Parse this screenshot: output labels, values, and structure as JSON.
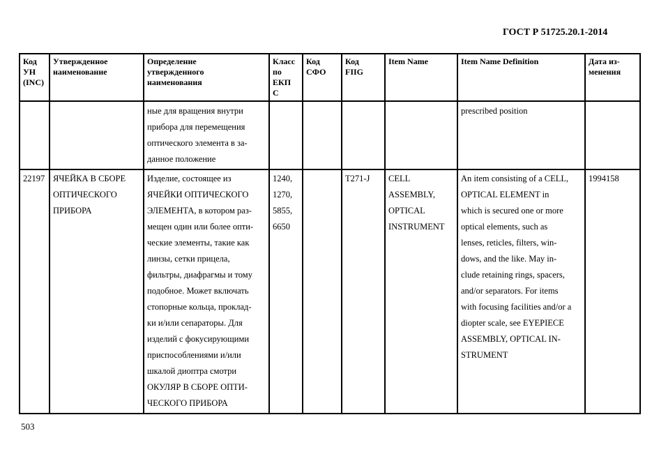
{
  "header": "ГОСТ Р 51725.20.1-2014",
  "page_number": "503",
  "columns": [
    [
      "Код",
      "УН",
      "(INC)"
    ],
    [
      "Утвержденное",
      "наименование"
    ],
    [
      "Определение",
      "утвержденного",
      "наименования"
    ],
    [
      "Класс",
      "по",
      "ЕКП",
      "С"
    ],
    [
      "Код",
      "СФО"
    ],
    [
      "Код",
      "FIIG"
    ],
    [
      "Item Name"
    ],
    [
      "Item Name Definition"
    ],
    [
      "Дата из-",
      "менения"
    ]
  ],
  "rows": [
    [
      [],
      [],
      [
        "ные для вращения внутри",
        "прибора для перемещения",
        "оптического элемента в за-",
        "данное положение"
      ],
      [],
      [],
      [],
      [],
      [
        "prescribed position"
      ],
      []
    ],
    [
      [
        "22197"
      ],
      [
        "ЯЧЕЙКА В СБОРЕ",
        "ОПТИЧЕСКОГО",
        "ПРИБОРА"
      ],
      [
        "Изделие, состоящее из",
        "ЯЧЕЙКИ ОПТИЧЕСКОГО",
        "ЭЛЕМЕНТА, в котором раз-",
        "мещен один или более опти-",
        "ческие элементы, такие как",
        "линзы, сетки прицела,",
        "фильтры, диафрагмы и тому",
        "подобное. Может включать",
        "стопорные кольца, проклад-",
        "ки и/или сепараторы. Для",
        "изделий с фокусирующими",
        "приспособлениями и/или",
        "шкалой диоптра смотри",
        "ОКУЛЯР В СБОРЕ ОПТИ-",
        "ЧЕСКОГО ПРИБОРА"
      ],
      [
        "1240,",
        "1270,",
        "5855,",
        "6650"
      ],
      [],
      [
        "T271-J"
      ],
      [
        "CELL",
        "ASSEMBLY,",
        "OPTICAL",
        "INSTRUMENT"
      ],
      [
        "An item consisting of a CELL,",
        "OPTICAL ELEMENT in",
        "which is secured one or more",
        "optical elements, such as",
        "lenses, reticles, filters, win-",
        "dows, and the like. May in-",
        "clude retaining rings, spacers,",
        "and/or separators. For items",
        "with focusing facilities and/or a",
        "diopter scale, see EYEPIECE",
        "ASSEMBLY, OPTICAL IN-",
        "STRUMENT"
      ],
      [
        "1994158"
      ]
    ]
  ]
}
